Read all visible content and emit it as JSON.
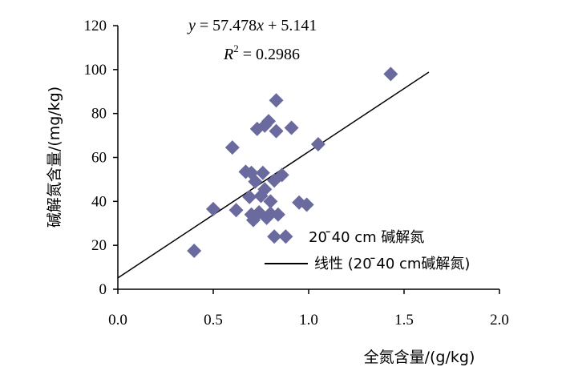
{
  "chart_data": {
    "type": "scatter",
    "xlabel": "全氮含量/(g/kg)",
    "ylabel": "碱解氮含量/(mg/kg)",
    "xlim": [
      0,
      2
    ],
    "ylim": [
      0,
      120
    ],
    "x_ticks": [
      "0.0",
      "0.5",
      "1.0",
      "1.5",
      "2.0"
    ],
    "y_ticks": [
      "0",
      "20",
      "40",
      "60",
      "80",
      "100",
      "120"
    ],
    "grid": false,
    "legend_position": "bottom-right inside plot",
    "marker_color": "#6a6a9e",
    "line_color": "#000000",
    "annotation": {
      "equation_y": "y",
      "equation_rhs": " = 57.478",
      "equation_x": "x",
      "equation_tail": " + 5.141",
      "r2_label": "R",
      "r2_sup": "2",
      "r2_value": " = 0.2986"
    },
    "series": [
      {
        "name": "20 ̄40 cm 碱解氮",
        "kind": "scatter",
        "points": [
          [
            0.4,
            17.5
          ],
          [
            0.5,
            36.5
          ],
          [
            0.6,
            64.5
          ],
          [
            0.62,
            36.0
          ],
          [
            0.67,
            53.5
          ],
          [
            0.69,
            42.0
          ],
          [
            0.7,
            53.0
          ],
          [
            0.7,
            34.0
          ],
          [
            0.71,
            31.5
          ],
          [
            0.72,
            49.0
          ],
          [
            0.73,
            73.0
          ],
          [
            0.74,
            35.0
          ],
          [
            0.75,
            42.5
          ],
          [
            0.76,
            53.0
          ],
          [
            0.77,
            74.5
          ],
          [
            0.77,
            45.5
          ],
          [
            0.78,
            32.5
          ],
          [
            0.79,
            76.5
          ],
          [
            0.8,
            40.0
          ],
          [
            0.8,
            34.5
          ],
          [
            0.82,
            24.0
          ],
          [
            0.82,
            49.5
          ],
          [
            0.83,
            72.0
          ],
          [
            0.83,
            86.0
          ],
          [
            0.84,
            34.0
          ],
          [
            0.86,
            52.0
          ],
          [
            0.88,
            24.0
          ],
          [
            0.91,
            73.5
          ],
          [
            0.95,
            39.5
          ],
          [
            0.99,
            38.5
          ],
          [
            1.05,
            66.0
          ],
          [
            1.43,
            98.0
          ]
        ]
      },
      {
        "name": "线性 (20 ̄40 cm碱解氮)",
        "kind": "line",
        "slope": 57.478,
        "intercept": 5.141,
        "x_range": [
          0,
          1.63
        ]
      }
    ]
  }
}
